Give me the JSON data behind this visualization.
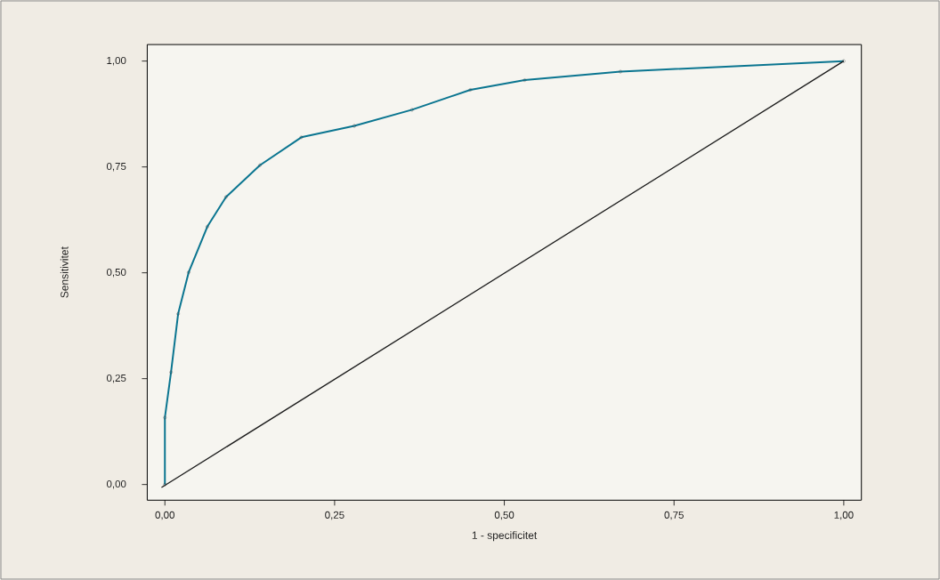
{
  "chart_data": {
    "type": "line",
    "xlabel": "1 - specificitet",
    "ylabel": "Sensitivitet",
    "xlim": [
      -0.026,
      1.026
    ],
    "ylim": [
      -0.037,
      1.039
    ],
    "xticks": [
      {
        "value": 0,
        "label": "0,00"
      },
      {
        "value": 0.25,
        "label": "0,25"
      },
      {
        "value": 0.5,
        "label": "0,50"
      },
      {
        "value": 0.75,
        "label": "0,75"
      },
      {
        "value": 1,
        "label": "1,00"
      }
    ],
    "yticks": [
      {
        "value": 0,
        "label": "0,00"
      },
      {
        "value": 0.25,
        "label": "0,25"
      },
      {
        "value": 0.5,
        "label": "0,50"
      },
      {
        "value": 0.75,
        "label": "0,75"
      },
      {
        "value": 1,
        "label": "1,00"
      }
    ],
    "series": [
      {
        "color": "#0a7590",
        "marker": "circle",
        "line_style": "solid",
        "x": [
          0,
          0,
          0.009,
          0.0195,
          0.035,
          0.0625,
          0.09,
          0.14,
          0.201,
          0.279,
          0.364,
          0.45,
          0.53,
          0.671,
          1
        ],
        "values": [
          0,
          0.158,
          0.265,
          0.403,
          0.501,
          0.609,
          0.679,
          0.754,
          0.82,
          0.847,
          0.885,
          0.932,
          0.955,
          0.975,
          1
        ]
      },
      {
        "color": "#1a1a1a",
        "marker": "none",
        "line_style": "solid",
        "x": [
          -0.005,
          1
        ],
        "values": [
          -0.007,
          1
        ]
      }
    ]
  }
}
